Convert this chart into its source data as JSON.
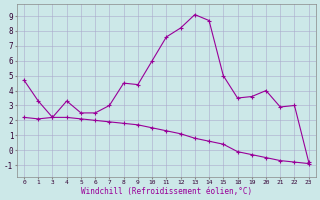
{
  "xlabel": "Windchill (Refroidissement éolien,°C)",
  "background_color": "#cce8e8",
  "line_color": "#990099",
  "grid_color": "#aaaacc",
  "hour_labels": [
    0,
    1,
    3,
    4,
    5,
    6,
    7,
    8,
    9,
    10,
    11,
    12,
    13,
    14,
    15,
    18,
    19,
    20,
    21,
    22,
    23
  ],
  "windchill": [
    4.7,
    3.3,
    2.2,
    3.3,
    2.5,
    2.5,
    3.0,
    4.5,
    4.4,
    6.0,
    7.6,
    8.2,
    9.1,
    8.7,
    5.0,
    3.5,
    3.6,
    4.0,
    2.9,
    3.0,
    -0.8
  ],
  "temp2": [
    2.2,
    2.1,
    2.2,
    2.2,
    2.1,
    2.0,
    1.9,
    1.8,
    1.7,
    1.5,
    1.3,
    1.1,
    0.8,
    0.6,
    0.4,
    -0.1,
    -0.3,
    -0.5,
    -0.7,
    -0.8,
    -0.9
  ],
  "ylim": [
    -1.8,
    9.8
  ],
  "yticks": [
    -1,
    0,
    1,
    2,
    3,
    4,
    5,
    6,
    7,
    8,
    9
  ],
  "marker": "+"
}
